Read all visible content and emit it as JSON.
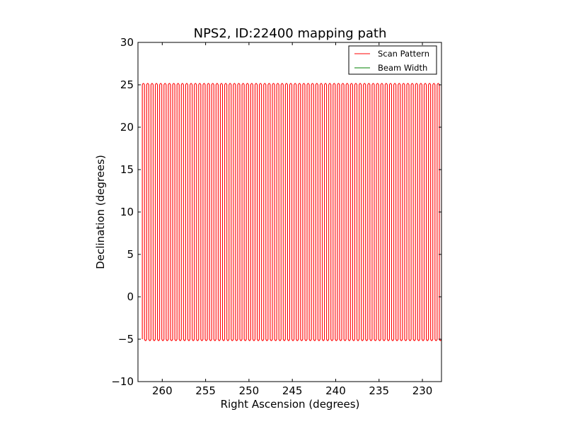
{
  "chart_data": {
    "type": "line",
    "title": "NPS2, ID:22400 mapping path",
    "xlabel": "Right Ascension (degrees)",
    "ylabel": "Declination (degrees)",
    "xlim": [
      262.8,
      227.8
    ],
    "ylim": [
      -10,
      30
    ],
    "x_inverted": true,
    "grid": false,
    "legend_position": "top-right",
    "xticks": [
      260,
      255,
      250,
      245,
      240,
      235,
      230
    ],
    "yticks": [
      -10,
      -5,
      0,
      5,
      10,
      15,
      20,
      25,
      30
    ],
    "series": [
      {
        "name": "Scan Pattern",
        "color": "#ff0000",
        "pattern": "serpentine vertical scan",
        "ra_start": 262.3,
        "ra_end": 227.8,
        "dec_min": -5,
        "dec_max": 25,
        "n_legs": 138
      },
      {
        "name": "Beam Width",
        "color": "#008000",
        "values": []
      }
    ]
  }
}
